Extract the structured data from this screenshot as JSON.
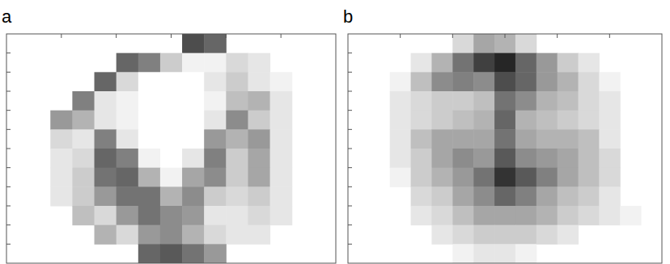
{
  "chart_data": [
    {
      "type": "heatmap",
      "title": "a",
      "xlim": [
        0,
        60
      ],
      "ylim": [
        0,
        12
      ],
      "xticks": [
        10,
        20,
        30,
        40,
        50
      ],
      "yticks": [
        1,
        2,
        3,
        4,
        5,
        6,
        7,
        8,
        9,
        10,
        11
      ],
      "tick_labels": false,
      "grid": false,
      "zlim": [
        0,
        100
      ],
      "cells": [
        [
          null,
          null,
          null,
          null,
          null,
          null,
          null,
          null,
          70,
          60,
          null,
          null,
          null,
          null,
          null
        ],
        [
          null,
          null,
          null,
          null,
          null,
          60,
          50,
          20,
          5,
          5,
          15,
          10,
          null,
          null,
          null
        ],
        [
          null,
          null,
          null,
          null,
          60,
          15,
          0,
          0,
          0,
          10,
          20,
          10,
          5,
          null,
          null
        ],
        [
          null,
          null,
          null,
          50,
          10,
          5,
          0,
          0,
          0,
          5,
          25,
          30,
          10,
          null,
          null
        ],
        [
          null,
          null,
          40,
          30,
          10,
          5,
          0,
          0,
          0,
          10,
          45,
          20,
          10,
          null,
          null
        ],
        [
          null,
          null,
          15,
          10,
          50,
          10,
          0,
          0,
          0,
          40,
          30,
          40,
          10,
          null,
          null
        ],
        [
          null,
          null,
          10,
          15,
          60,
          50,
          5,
          0,
          10,
          50,
          20,
          35,
          10,
          null,
          null
        ],
        [
          null,
          null,
          10,
          20,
          55,
          60,
          30,
          5,
          35,
          45,
          20,
          35,
          10,
          null,
          null
        ],
        [
          null,
          null,
          10,
          20,
          40,
          55,
          55,
          30,
          45,
          20,
          15,
          20,
          10,
          null,
          null
        ],
        [
          null,
          null,
          null,
          25,
          15,
          40,
          55,
          45,
          40,
          10,
          10,
          15,
          10,
          null,
          null
        ],
        [
          null,
          null,
          null,
          null,
          30,
          15,
          40,
          45,
          30,
          15,
          10,
          10,
          null,
          null,
          null
        ],
        [
          null,
          null,
          null,
          null,
          null,
          null,
          60,
          65,
          55,
          40,
          null,
          null,
          null,
          null,
          null
        ]
      ]
    },
    {
      "type": "heatmap",
      "title": "b",
      "xlim": [
        0,
        60
      ],
      "ylim": [
        0,
        12
      ],
      "xticks": [
        10,
        20,
        30,
        40,
        50
      ],
      "yticks": [
        1,
        2,
        3,
        4,
        5,
        6,
        7,
        8,
        9,
        10,
        11
      ],
      "tick_labels": false,
      "grid": false,
      "zlim": [
        0,
        100
      ],
      "cells": [
        [
          null,
          null,
          null,
          null,
          null,
          15,
          35,
          30,
          15,
          null,
          null,
          null,
          null,
          null,
          null
        ],
        [
          null,
          null,
          null,
          10,
          30,
          55,
          75,
          85,
          60,
          40,
          20,
          10,
          null,
          null,
          null
        ],
        [
          null,
          null,
          5,
          25,
          45,
          50,
          45,
          70,
          60,
          40,
          30,
          15,
          5,
          null,
          null
        ],
        [
          null,
          null,
          10,
          15,
          20,
          20,
          25,
          55,
          45,
          30,
          25,
          15,
          10,
          null,
          null
        ],
        [
          null,
          null,
          10,
          15,
          20,
          25,
          30,
          60,
          30,
          25,
          20,
          15,
          10,
          null,
          null
        ],
        [
          null,
          null,
          10,
          25,
          35,
          35,
          35,
          55,
          35,
          30,
          30,
          25,
          10,
          null,
          null
        ],
        [
          null,
          null,
          10,
          20,
          35,
          45,
          40,
          65,
          45,
          40,
          35,
          25,
          15,
          null,
          null
        ],
        [
          null,
          null,
          5,
          20,
          30,
          40,
          55,
          80,
          65,
          50,
          35,
          25,
          15,
          null,
          null
        ],
        [
          null,
          null,
          null,
          15,
          20,
          35,
          45,
          60,
          50,
          35,
          25,
          20,
          10,
          null,
          null
        ],
        [
          null,
          null,
          null,
          10,
          15,
          25,
          35,
          35,
          35,
          30,
          20,
          15,
          10,
          5,
          null
        ],
        [
          null,
          null,
          null,
          null,
          10,
          15,
          20,
          20,
          20,
          15,
          10,
          null,
          null,
          null,
          null
        ],
        [
          null,
          null,
          null,
          null,
          null,
          5,
          10,
          10,
          5,
          null,
          null,
          null,
          null,
          null,
          null
        ]
      ]
    }
  ]
}
